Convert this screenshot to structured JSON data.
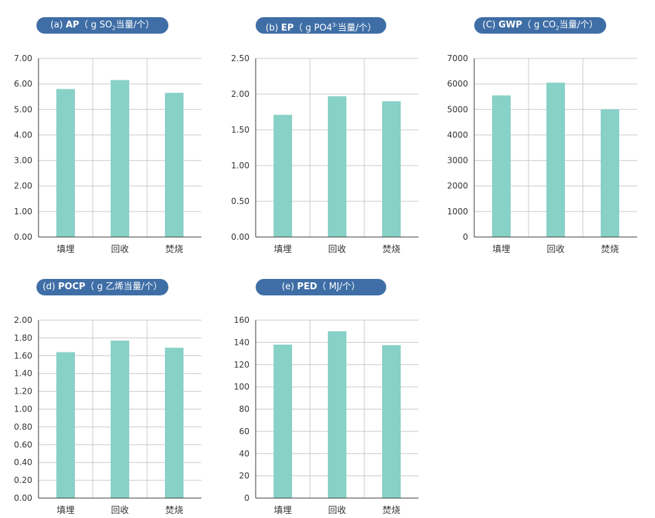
{
  "style": {
    "bar_color": "#88d1c7",
    "pill_color": "#3f6ea6",
    "grid_color": "#c8c8c8",
    "axis_color": "#333333"
  },
  "chart_data": [
    {
      "type": "bar",
      "title_prefix": "(a)",
      "title_bold": "AP",
      "title_unit": "（ g SO",
      "title_sub": "2",
      "title_sup": "",
      "title_suffix": "当量/个）",
      "categories": [
        "填埋",
        "回收",
        "焚烧"
      ],
      "values": [
        5.8,
        6.15,
        5.65
      ],
      "ylim": [
        0,
        7
      ],
      "ticks": [
        "0.00",
        "1.00",
        "2.00",
        "3.00",
        "4.00",
        "5.00",
        "6.00",
        "7.00"
      ]
    },
    {
      "type": "bar",
      "title_prefix": "(b)",
      "title_bold": "EP",
      "title_unit": "（ g PO4",
      "title_sub": "",
      "title_sup": "3-",
      "title_suffix": "当量/个）",
      "categories": [
        "填埋",
        "回收",
        "焚烧"
      ],
      "values": [
        1.71,
        1.97,
        1.9
      ],
      "ylim": [
        0,
        2.5
      ],
      "ticks": [
        "0.00",
        "0.50",
        "1.00",
        "1.50",
        "2.00",
        "2.50"
      ]
    },
    {
      "type": "bar",
      "title_prefix": "(C)",
      "title_bold": "GWP",
      "title_unit": "（ g CO",
      "title_sub": "2",
      "title_sup": "",
      "title_suffix": "当量/个）",
      "categories": [
        "填埋",
        "回收",
        "焚烧"
      ],
      "values": [
        5550,
        6050,
        5000
      ],
      "ylim": [
        0,
        7000
      ],
      "ticks": [
        "0",
        "1000",
        "2000",
        "3000",
        "4000",
        "5000",
        "6000",
        "7000"
      ]
    },
    {
      "type": "bar",
      "title_prefix": "(d)",
      "title_bold": "POCP",
      "title_unit": "（ g 乙烯",
      "title_sub": "",
      "title_sup": "",
      "title_suffix": "当量/个）",
      "categories": [
        "填埋",
        "回收",
        "焚烧"
      ],
      "values": [
        1.64,
        1.77,
        1.69
      ],
      "ylim": [
        0,
        2
      ],
      "ticks": [
        "0.00",
        "0.20",
        "0.40",
        "0.60",
        "0.80",
        "1.00",
        "1.20",
        "1.40",
        "1.60",
        "1.80",
        "2.00"
      ]
    },
    {
      "type": "bar",
      "title_prefix": "(e)",
      "title_bold": "PED",
      "title_unit": "（ MJ/个）",
      "title_sub": "",
      "title_sup": "",
      "title_suffix": "",
      "categories": [
        "填埋",
        "回收",
        "焚烧"
      ],
      "values": [
        138,
        150,
        137.5
      ],
      "ylim": [
        0,
        160
      ],
      "ticks": [
        "0",
        "20",
        "40",
        "60",
        "80",
        "100",
        "120",
        "140",
        "160"
      ]
    }
  ]
}
